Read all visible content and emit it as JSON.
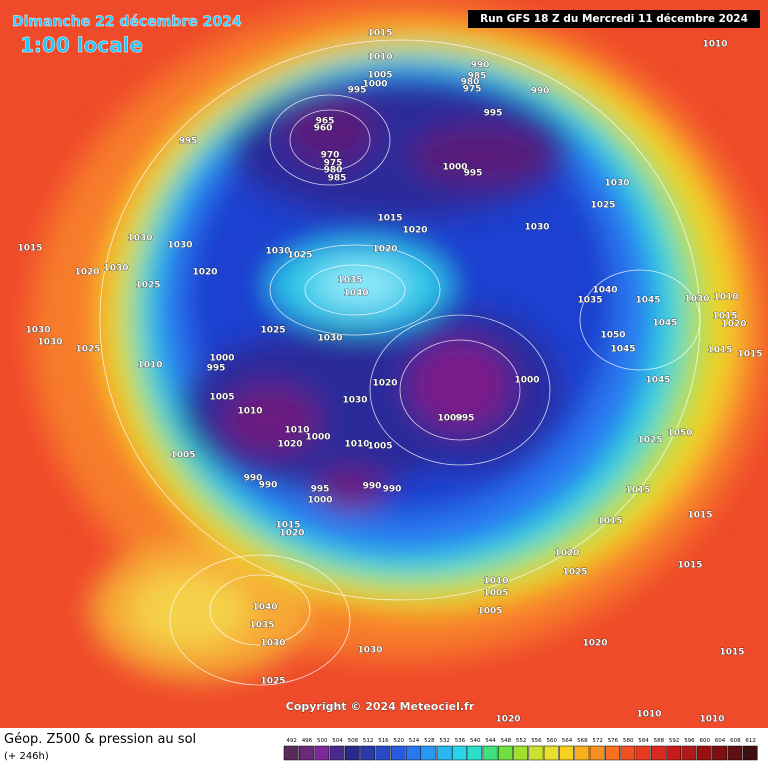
{
  "header": {
    "date": "Dimanche 22 décembre 2024",
    "time": "1:00 locale",
    "run": "Run GFS 18 Z du Mercredi 11 décembre 2024"
  },
  "copyright": "Copyright © 2024 Meteociel.fr",
  "footer": {
    "title": "Géop. Z500 & pression au sol",
    "lead": "(+ 246h)"
  },
  "legend": {
    "ticks": [
      492,
      496,
      500,
      504,
      508,
      512,
      516,
      520,
      524,
      528,
      532,
      536,
      540,
      544,
      548,
      552,
      556,
      560,
      564,
      568,
      572,
      576,
      580,
      584,
      588,
      592,
      596,
      600,
      604,
      608,
      612
    ]
  },
  "isobar_labels": [
    1015,
    1010,
    1005,
    1000,
    995,
    990,
    985,
    980,
    975,
    990,
    995,
    965,
    960,
    970,
    975,
    980,
    985,
    1000,
    995,
    995,
    1010,
    1030,
    1025,
    1030,
    1015,
    1020,
    1020,
    1015,
    1030,
    1030,
    1030,
    1025,
    1020,
    1030,
    1020,
    1025,
    1035,
    1040,
    1030,
    1030,
    1025,
    1025,
    1030,
    1010,
    1000,
    995,
    1005,
    1010,
    1030,
    1020,
    1000,
    1000,
    995,
    1010,
    1000,
    1020,
    1010,
    1005,
    1005,
    990,
    990,
    995,
    1000,
    990,
    990,
    1015,
    1020,
    1040,
    1035,
    1030,
    1025,
    1030,
    1040,
    1035,
    1045,
    1030,
    1010,
    1015,
    1020,
    1045,
    1050,
    1045,
    1015,
    1015,
    1045,
    1025,
    1050,
    1015,
    1015,
    1015,
    1020,
    1025,
    1015,
    1010,
    1005,
    1005,
    1020,
    1015,
    1010,
    1010,
    1020
  ]
}
